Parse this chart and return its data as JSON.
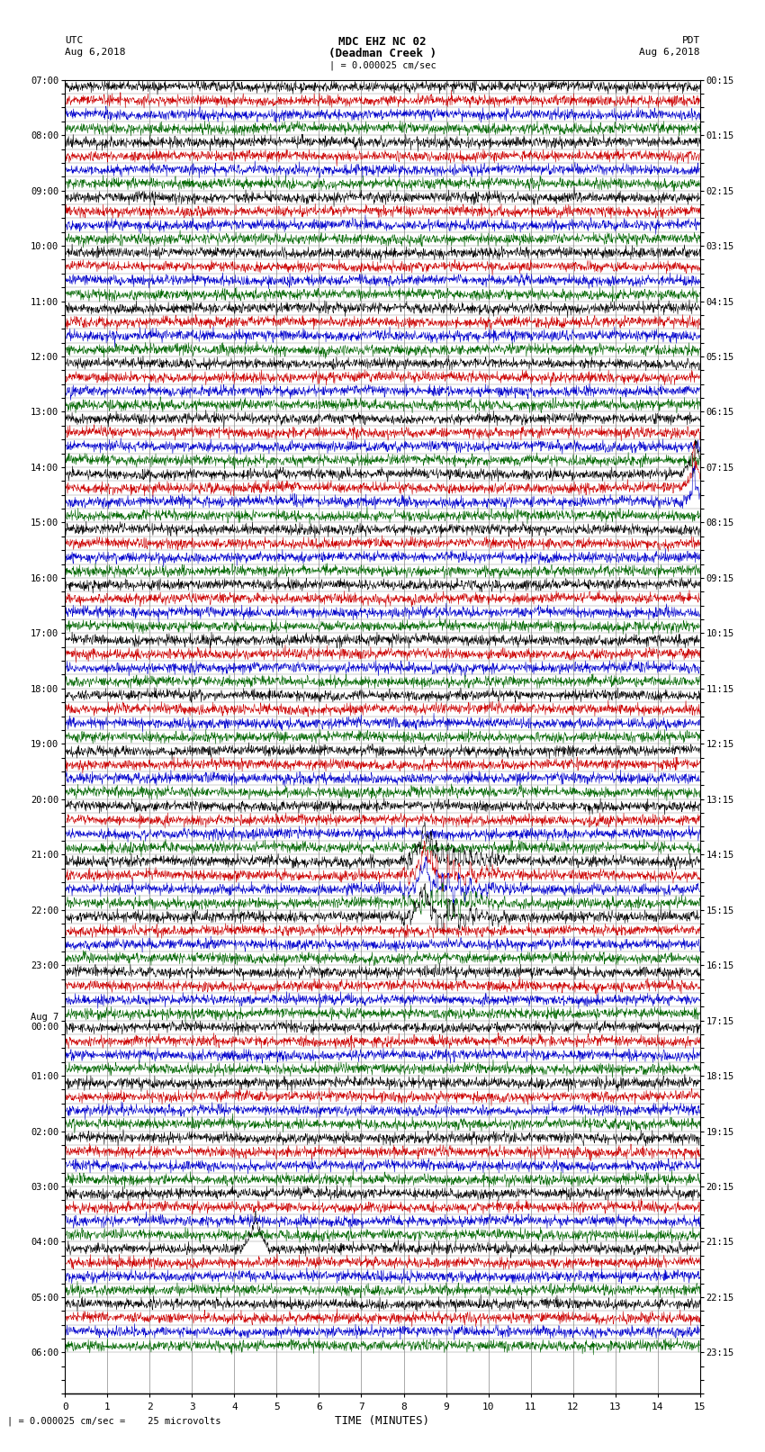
{
  "title_line1": "MDC EHZ NC 02",
  "title_line2": "(Deadman Creek )",
  "title_line3": "| = 0.000025 cm/sec",
  "left_header": "UTC",
  "left_date": "Aug 6,2018",
  "right_header": "PDT",
  "right_date": "Aug 6,2018",
  "xlabel": "TIME (MINUTES)",
  "footer": "| = 0.000025 cm/sec =    25 microvolts",
  "xmin": 0,
  "xmax": 15,
  "bg_color": "#ffffff",
  "trace_colors": [
    "#000000",
    "#cc0000",
    "#0000cc",
    "#006600"
  ],
  "grid_color": "#888888",
  "utc_labels": [
    "07:00",
    "",
    "",
    "",
    "08:00",
    "",
    "",
    "",
    "09:00",
    "",
    "",
    "",
    "10:00",
    "",
    "",
    "",
    "11:00",
    "",
    "",
    "",
    "12:00",
    "",
    "",
    "",
    "13:00",
    "",
    "",
    "",
    "14:00",
    "",
    "",
    "",
    "15:00",
    "",
    "",
    "",
    "16:00",
    "",
    "",
    "",
    "17:00",
    "",
    "",
    "",
    "18:00",
    "",
    "",
    "",
    "19:00",
    "",
    "",
    "",
    "20:00",
    "",
    "",
    "",
    "21:00",
    "",
    "",
    "",
    "22:00",
    "",
    "",
    "",
    "23:00",
    "",
    "",
    "",
    "Aug 7\n00:00",
    "",
    "",
    "",
    "01:00",
    "",
    "",
    "",
    "02:00",
    "",
    "",
    "",
    "03:00",
    "",
    "",
    "",
    "04:00",
    "",
    "",
    "",
    "05:00",
    "",
    "",
    "",
    "06:00",
    "",
    "",
    ""
  ],
  "pdt_labels": [
    "00:15",
    "",
    "",
    "",
    "01:15",
    "",
    "",
    "",
    "02:15",
    "",
    "",
    "",
    "03:15",
    "",
    "",
    "",
    "04:15",
    "",
    "",
    "",
    "05:15",
    "",
    "",
    "",
    "06:15",
    "",
    "",
    "",
    "07:15",
    "",
    "",
    "",
    "08:15",
    "",
    "",
    "",
    "09:15",
    "",
    "",
    "",
    "10:15",
    "",
    "",
    "",
    "11:15",
    "",
    "",
    "",
    "12:15",
    "",
    "",
    "",
    "13:15",
    "",
    "",
    "",
    "14:15",
    "",
    "",
    "",
    "15:15",
    "",
    "",
    "",
    "16:15",
    "",
    "",
    "",
    "17:15",
    "",
    "",
    "",
    "18:15",
    "",
    "",
    "",
    "19:15",
    "",
    "",
    "",
    "20:15",
    "",
    "",
    "",
    "21:15",
    "",
    "",
    "",
    "22:15",
    "",
    "",
    "",
    "23:15",
    "",
    "",
    ""
  ],
  "n_rows": 92,
  "n_traces_per_row": 1,
  "trace_color_cycle": [
    "#000000",
    "#cc0000",
    "#0000cc",
    "#006600"
  ],
  "spike_events": [
    {
      "row": 28,
      "x": 14.9,
      "amplitude": 8,
      "color": "#000000"
    },
    {
      "row": 29,
      "x": 14.9,
      "amplitude": 6,
      "color": "#000000"
    },
    {
      "row": 30,
      "x": 14.9,
      "amplitude": 4,
      "color": "#000000"
    },
    {
      "row": 56,
      "x": 8.5,
      "amplitude": 10,
      "color": "#cc0000"
    },
    {
      "row": 57,
      "x": 8.5,
      "amplitude": 8,
      "color": "#000000"
    },
    {
      "row": 58,
      "x": 8.5,
      "amplitude": 6,
      "color": "#cc0000"
    },
    {
      "row": 60,
      "x": 8.5,
      "amplitude": 8,
      "color": "#000000"
    },
    {
      "row": 84,
      "x": 4.5,
      "amplitude": 8,
      "color": "#0000cc"
    }
  ],
  "figwidth": 8.5,
  "figheight": 16.13,
  "dpi": 100
}
